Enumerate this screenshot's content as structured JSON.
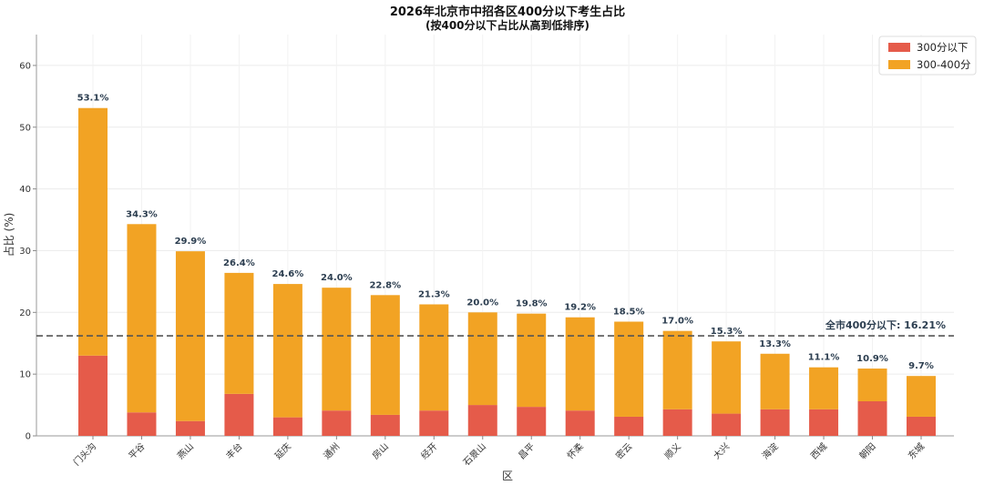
{
  "colors": {
    "below_300": "#e55b4a",
    "range_300_400": "#f2a324",
    "reference_line": "#555555",
    "label_text": "#2c3e50"
  },
  "chart_data": {
    "type": "bar",
    "stacked": true,
    "title": "2026年北京市中招各区400分以下考生占比",
    "subtitle": "(按400分以下占比从高到低排序)",
    "xlabel": "区",
    "ylabel": "占比 (%)",
    "ylim": [
      0,
      65
    ],
    "yticks": [
      0,
      10,
      20,
      30,
      40,
      50,
      60
    ],
    "grid": true,
    "legend_position": "top-right",
    "categories": [
      "门头沟",
      "平谷",
      "燕山",
      "丰台",
      "延庆",
      "通州",
      "房山",
      "经开",
      "石景山",
      "昌平",
      "怀柔",
      "密云",
      "顺义",
      "大兴",
      "海淀",
      "西城",
      "朝阳",
      "东城"
    ],
    "series": [
      {
        "name": "300分以下",
        "color_key": "below_300",
        "values": [
          13.0,
          3.8,
          2.4,
          6.8,
          3.0,
          4.1,
          3.4,
          4.1,
          5.0,
          4.7,
          4.1,
          3.1,
          4.3,
          3.6,
          4.3,
          4.3,
          5.6,
          3.1
        ]
      },
      {
        "name": "300-400分",
        "color_key": "range_300_400",
        "values": [
          40.1,
          30.5,
          27.5,
          19.6,
          21.6,
          19.9,
          19.4,
          17.2,
          15.0,
          15.1,
          15.1,
          15.4,
          12.7,
          11.7,
          9.0,
          6.8,
          5.3,
          6.6
        ]
      }
    ],
    "totals": [
      53.1,
      34.3,
      29.9,
      26.4,
      24.6,
      24.0,
      22.8,
      21.3,
      20.0,
      19.8,
      19.2,
      18.5,
      17.0,
      15.3,
      13.3,
      11.1,
      10.9,
      9.7
    ],
    "total_labels": [
      "53.1%",
      "34.3%",
      "29.9%",
      "26.4%",
      "24.6%",
      "24.0%",
      "22.8%",
      "21.3%",
      "20.0%",
      "19.8%",
      "19.2%",
      "18.5%",
      "17.0%",
      "15.3%",
      "13.3%",
      "11.1%",
      "10.9%",
      "9.7%"
    ],
    "reference_line": {
      "value": 16.21,
      "label": "全市400分以下: 16.21%"
    }
  }
}
